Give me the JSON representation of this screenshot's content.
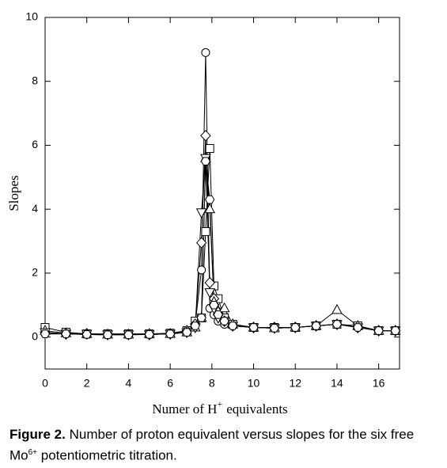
{
  "chart_data": {
    "type": "line",
    "y_label": "Slopes",
    "x_label": [
      "Numer of H",
      "+",
      "equivalents"
    ],
    "x": [
      0,
      1,
      2,
      3,
      4,
      5,
      6,
      6.8,
      7.2,
      7.5,
      7.7,
      7.9,
      8.1,
      8.3,
      8.6,
      9,
      10,
      11,
      12,
      13,
      14,
      15,
      16,
      16.8
    ],
    "series": [
      {
        "marker": "circle",
        "color": "#000000",
        "values": [
          0.1,
          0.1,
          0.08,
          0.07,
          0.07,
          0.08,
          0.1,
          0.15,
          0.4,
          2.1,
          8.9,
          0.9,
          0.7,
          0.5,
          0.4,
          0.35,
          0.3,
          0.28,
          0.3,
          0.35,
          0.4,
          0.35,
          0.2,
          0.2
        ]
      },
      {
        "marker": "square",
        "color": "#000000",
        "values": [
          0.3,
          0.15,
          0.1,
          0.1,
          0.1,
          0.1,
          0.12,
          0.2,
          0.5,
          0.6,
          3.3,
          5.9,
          1.6,
          1.2,
          0.6,
          0.4,
          0.3,
          0.3,
          0.3,
          0.35,
          0.4,
          0.35,
          0.2,
          0.2
        ]
      },
      {
        "marker": "diamond",
        "color": "#000000",
        "values": [
          0.15,
          0.1,
          0.1,
          0.08,
          0.08,
          0.08,
          0.1,
          0.2,
          0.4,
          2.95,
          6.3,
          1.7,
          1.2,
          0.8,
          0.5,
          0.35,
          0.3,
          0.3,
          0.3,
          0.35,
          0.4,
          0.3,
          0.2,
          0.2
        ]
      },
      {
        "marker": "triangle-up",
        "color": "#000000",
        "values": [
          0.2,
          0.12,
          0.1,
          0.08,
          0.08,
          0.1,
          0.1,
          0.15,
          0.3,
          0.6,
          5.6,
          4.0,
          1.1,
          0.8,
          0.9,
          0.4,
          0.3,
          0.28,
          0.3,
          0.35,
          0.85,
          0.35,
          0.2,
          0.2
        ]
      },
      {
        "marker": "triangle-down",
        "color": "#000000",
        "values": [
          0.15,
          0.1,
          0.1,
          0.08,
          0.08,
          0.08,
          0.1,
          0.15,
          0.3,
          3.9,
          5.6,
          1.4,
          0.9,
          0.6,
          0.5,
          0.35,
          0.3,
          0.28,
          0.3,
          0.35,
          0.4,
          0.3,
          0.2,
          0.2
        ]
      },
      {
        "marker": "hexagon",
        "color": "#000000",
        "values": [
          0.1,
          0.1,
          0.08,
          0.07,
          0.07,
          0.08,
          0.1,
          0.15,
          0.35,
          0.6,
          5.5,
          4.3,
          1.0,
          0.7,
          0.5,
          0.35,
          0.3,
          0.28,
          0.3,
          0.35,
          0.4,
          0.3,
          0.2,
          0.2
        ]
      }
    ],
    "xlim": [
      0,
      17
    ],
    "xticks": [
      0,
      2,
      4,
      6,
      8,
      10,
      12,
      14,
      16
    ],
    "ylim": [
      -1,
      10
    ],
    "yticks": [
      0,
      2,
      4,
      6,
      8,
      10
    ],
    "grid": false
  },
  "caption": {
    "label": "Figure 2.",
    "text": [
      " Number of proton equivalent versus slopes for the six free Mo",
      "6+",
      " potentiometric titration."
    ]
  }
}
